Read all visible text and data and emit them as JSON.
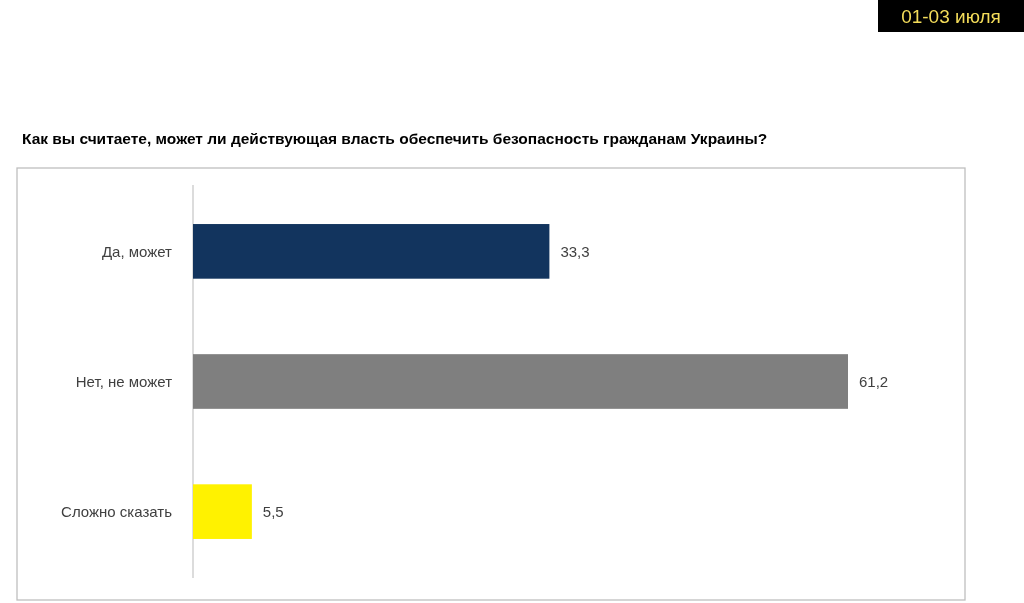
{
  "chart_data": {
    "type": "bar",
    "orientation": "horizontal",
    "title": "Как вы считаете, может ли действующая власть обеспечить безопасность гражданам Украины?",
    "categories": [
      "Да, может",
      "Нет, не может",
      "Сложно сказать"
    ],
    "values": [
      33.3,
      61.2,
      5.5
    ],
    "colors": [
      "#12345e",
      "#7f7f7f",
      "#fff200"
    ],
    "value_labels": [
      "33,3",
      "61,2",
      "5,5"
    ],
    "annotations": [
      "01-03 июля"
    ]
  }
}
